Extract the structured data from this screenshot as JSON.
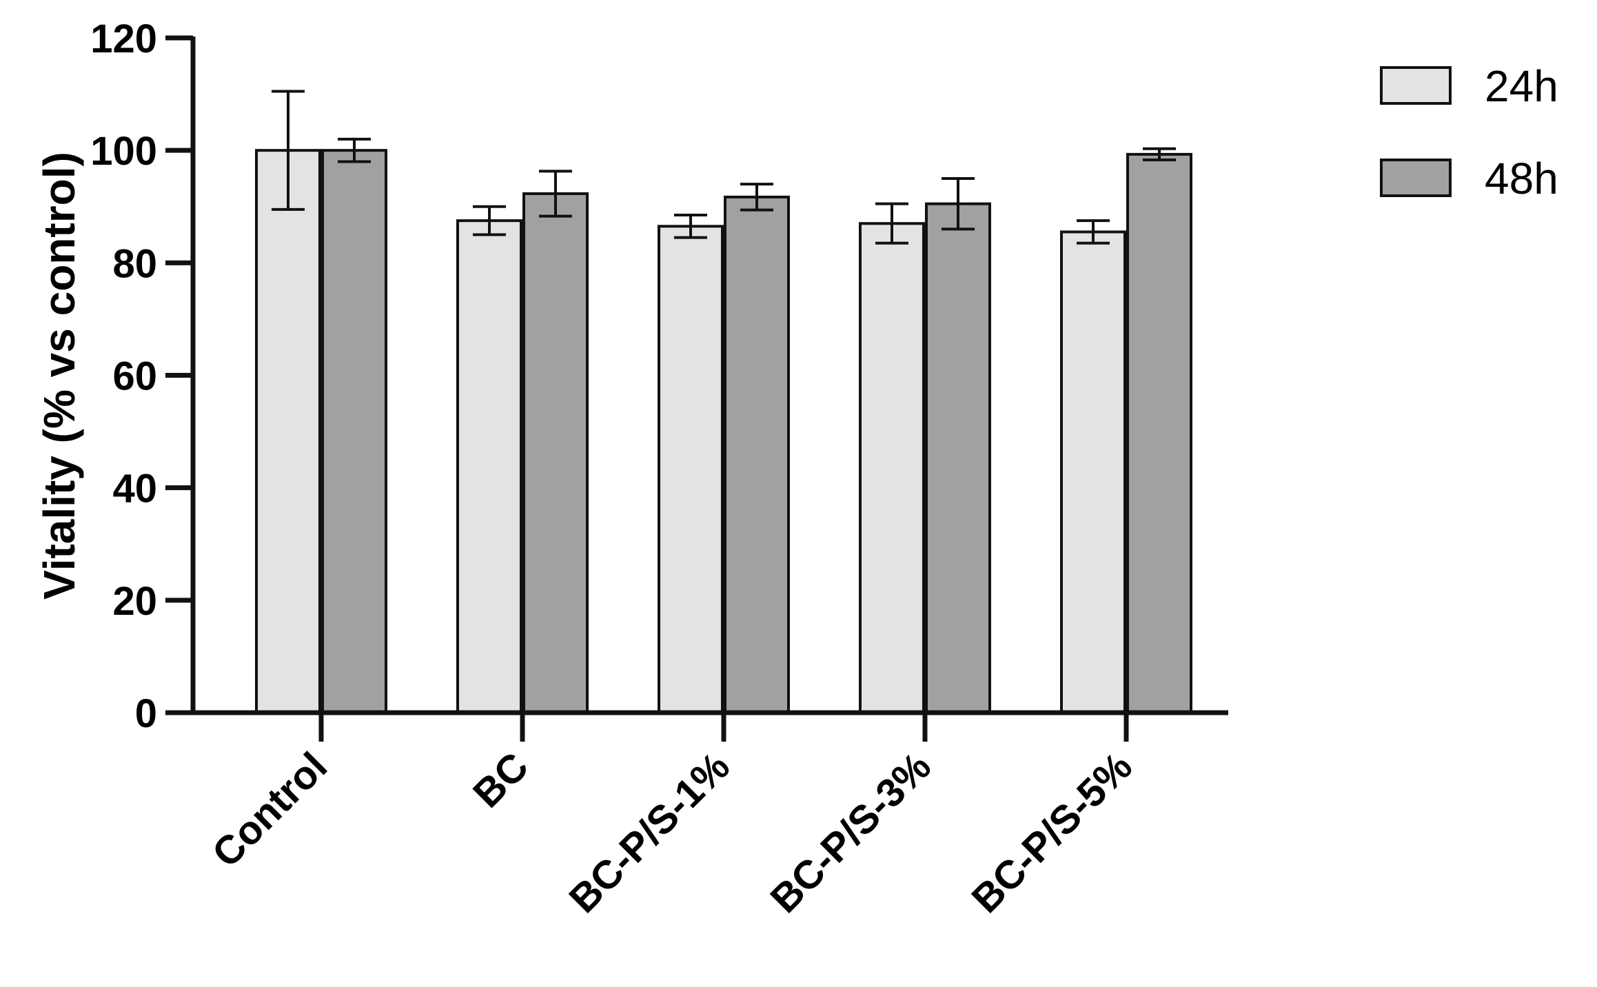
{
  "chart_data": {
    "type": "bar",
    "title": "",
    "xlabel": "",
    "ylabel": "Vitality (% vs control)",
    "ylim": [
      0,
      120
    ],
    "yticks": [
      "0",
      "20",
      "40",
      "60",
      "80",
      "100",
      "120"
    ],
    "grid": false,
    "legend_position": "top-right",
    "categories": [
      "Control",
      "BC",
      "BC-P/S-1%",
      "BC-P/S-3%",
      "BC-P/S-5%"
    ],
    "series": [
      {
        "name": "24h",
        "color": "#e3e3e3",
        "values": [
          100,
          87.5,
          86.5,
          87,
          85.5
        ],
        "errors": [
          10.5,
          2.5,
          2,
          3.5,
          2
        ]
      },
      {
        "name": "48h",
        "color": "#a1a1a1",
        "values": [
          100,
          92.3,
          91.7,
          90.5,
          99.3
        ],
        "errors": [
          2,
          4,
          2.3,
          4.5,
          1
        ]
      }
    ]
  }
}
